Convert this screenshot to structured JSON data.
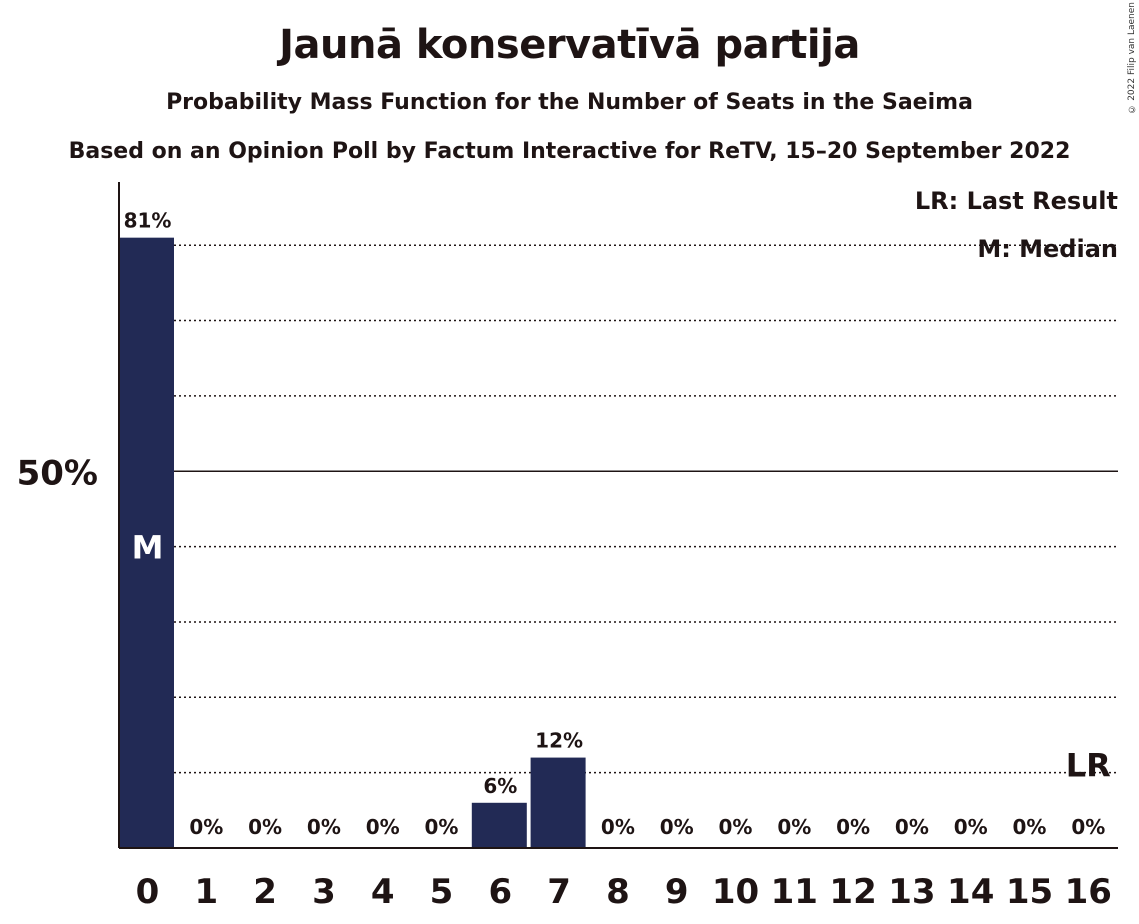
{
  "title": "Jaunā konservatīvā partija",
  "subtitle1": "Probability Mass Function for the Number of Seats in the Saeima",
  "subtitle2": "Based on an Opinion Poll by Factum Interactive for ReTV, 15–20 September 2022",
  "copyright": "© 2022 Filip van Laenen",
  "legend": {
    "last_result": "LR: Last Result",
    "median": "M: Median"
  },
  "markers": {
    "median": "M",
    "last_result": "LR"
  },
  "colors": {
    "bar": "#222a55",
    "text": "#1e1414"
  },
  "chart_data": {
    "type": "bar",
    "title": "Jaunā konservatīvā partija",
    "xlabel": "",
    "ylabel": "",
    "categories": [
      "0",
      "1",
      "2",
      "3",
      "4",
      "5",
      "6",
      "7",
      "8",
      "9",
      "10",
      "11",
      "12",
      "13",
      "14",
      "15",
      "16"
    ],
    "values": [
      81,
      0,
      0,
      0,
      0,
      0,
      6,
      12,
      0,
      0,
      0,
      0,
      0,
      0,
      0,
      0,
      0
    ],
    "value_labels": [
      "81%",
      "0%",
      "0%",
      "0%",
      "0%",
      "0%",
      "6%",
      "12%",
      "0%",
      "0%",
      "0%",
      "0%",
      "0%",
      "0%",
      "0%",
      "0%",
      "0%"
    ],
    "y_tick_label": "50%",
    "y_tick_value": 50,
    "ylim": [
      0,
      88
    ],
    "gridlines": [
      10,
      20,
      30,
      40,
      50,
      60,
      70,
      80
    ],
    "median_seat": 0,
    "last_result_seat": 16,
    "last_result_value": 10,
    "legend_position": "top-right"
  }
}
